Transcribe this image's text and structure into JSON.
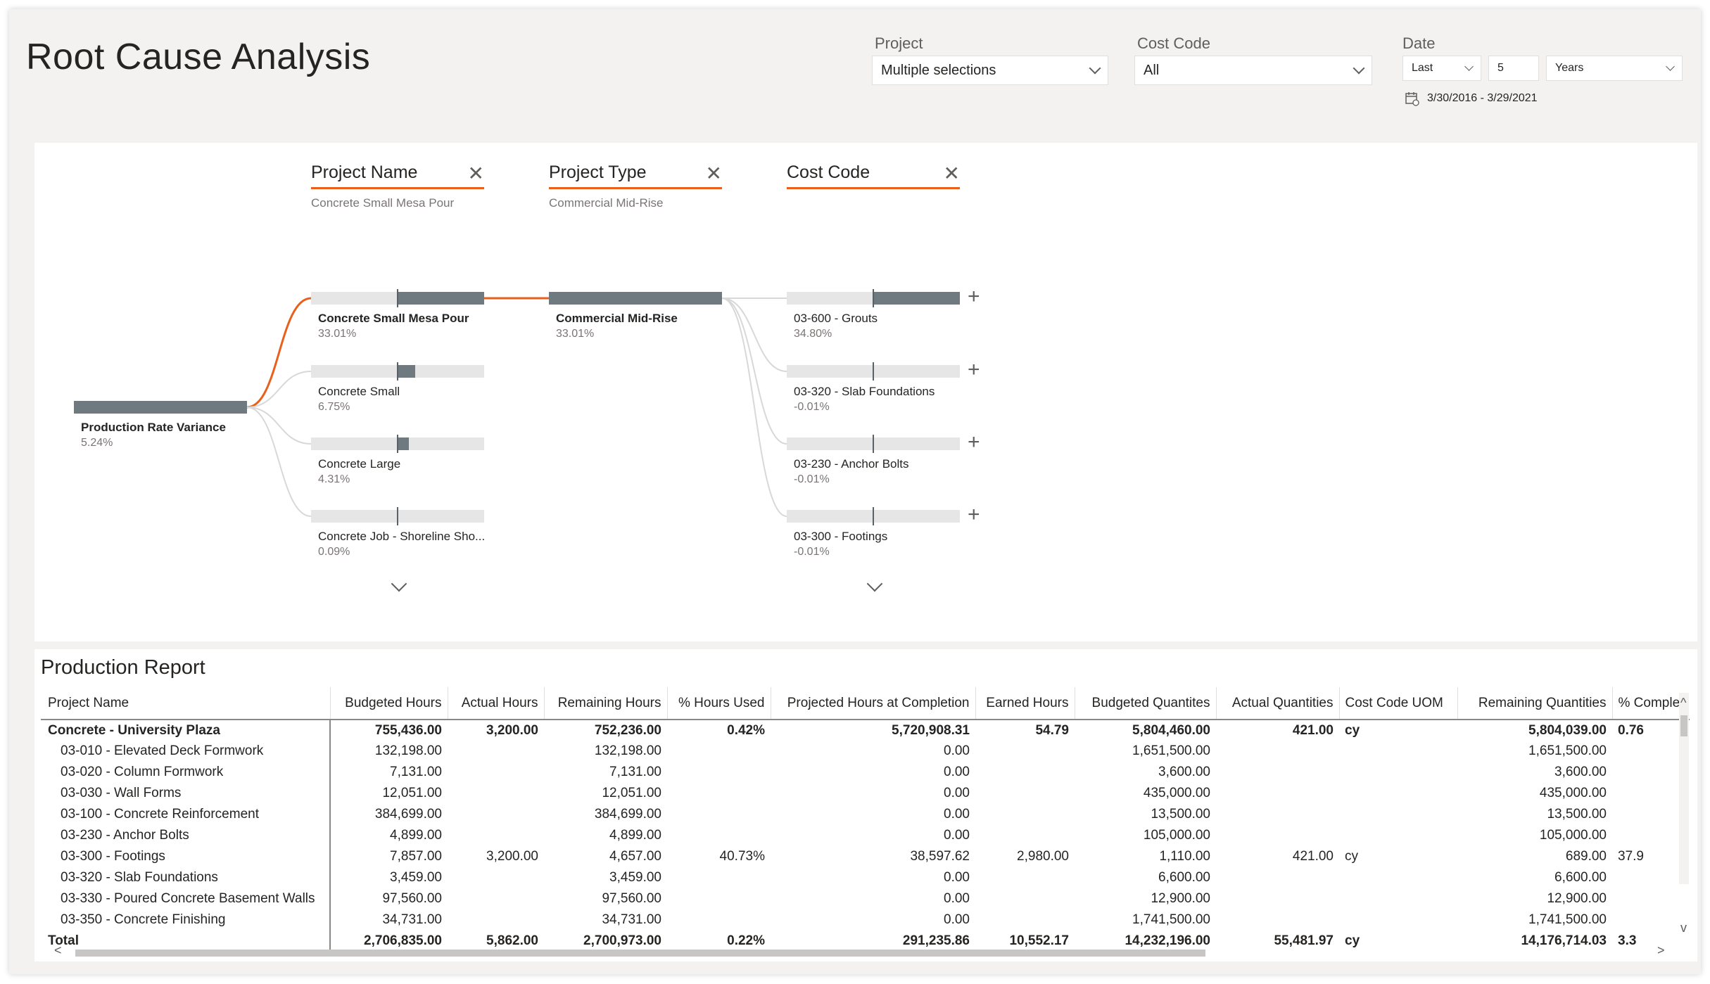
{
  "page": {
    "title": "Root Cause Analysis"
  },
  "filters": {
    "project": {
      "label": "Project",
      "value": "Multiple selections"
    },
    "cost_code": {
      "label": "Cost Code",
      "value": "All"
    },
    "date": {
      "label": "Date",
      "relative": "Last",
      "count": "5",
      "unit": "Years",
      "range": "3/30/2016 - 3/29/2021"
    }
  },
  "tree": {
    "root": {
      "label": "Production Rate Variance",
      "value": "5.24%"
    },
    "levels": [
      {
        "title": "Project Name",
        "selection": "Concrete Small Mesa Pour"
      },
      {
        "title": "Project Type",
        "selection": "Commercial Mid-Rise"
      },
      {
        "title": "Cost Code",
        "selection": ""
      }
    ],
    "project_nodes": [
      {
        "label": "Concrete Small Mesa Pour",
        "value": "33.01%",
        "share": 0.5
      },
      {
        "label": "Concrete Small",
        "value": "6.75%",
        "share": 0.1
      },
      {
        "label": "Concrete Large",
        "value": "4.31%",
        "share": 0.065
      },
      {
        "label": "Concrete Job - Shoreline Sho...",
        "value": "0.09%",
        "share": 0.0
      }
    ],
    "type_nodes": [
      {
        "label": "Commercial Mid-Rise",
        "value": "33.01%",
        "share": 1.0
      }
    ],
    "cost_nodes": [
      {
        "label": "03-600 - Grouts",
        "value": "34.80%",
        "share": 0.5
      },
      {
        "label": "03-320 - Slab Foundations",
        "value": "-0.01%",
        "share": 0.0
      },
      {
        "label": "03-230 - Anchor Bolts",
        "value": "-0.01%",
        "share": 0.0
      },
      {
        "label": "03-300 - Footings",
        "value": "-0.01%",
        "share": 0.0
      }
    ]
  },
  "report": {
    "title": "Production Report",
    "columns": [
      "Project Name",
      "Budgeted Hours",
      "Actual Hours",
      "Remaining Hours",
      "% Hours Used",
      "Projected Hours at Completion",
      "Earned Hours",
      "Budgeted Quantites",
      "Actual Quantities",
      "Cost Code UOM",
      "Remaining Quantities",
      "% Comple"
    ],
    "group_row": [
      "Concrete - University Plaza",
      "755,436.00",
      "3,200.00",
      "752,236.00",
      "0.42%",
      "5,720,908.31",
      "54.79",
      "5,804,460.00",
      "421.00",
      "cy",
      "5,804,039.00",
      "0.76"
    ],
    "rows": [
      [
        "03-010 - Elevated Deck Formwork",
        "132,198.00",
        "",
        "132,198.00",
        "",
        "0.00",
        "",
        "1,651,500.00",
        "",
        "",
        "1,651,500.00",
        ""
      ],
      [
        "03-020 - Column Formwork",
        "7,131.00",
        "",
        "7,131.00",
        "",
        "0.00",
        "",
        "3,600.00",
        "",
        "",
        "3,600.00",
        ""
      ],
      [
        "03-030 - Wall Forms",
        "12,051.00",
        "",
        "12,051.00",
        "",
        "0.00",
        "",
        "435,000.00",
        "",
        "",
        "435,000.00",
        ""
      ],
      [
        "03-100 - Concrete Reinforcement",
        "384,699.00",
        "",
        "384,699.00",
        "",
        "0.00",
        "",
        "13,500.00",
        "",
        "",
        "13,500.00",
        ""
      ],
      [
        "03-230 - Anchor Bolts",
        "4,899.00",
        "",
        "4,899.00",
        "",
        "0.00",
        "",
        "105,000.00",
        "",
        "",
        "105,000.00",
        ""
      ],
      [
        "03-300 - Footings",
        "7,857.00",
        "3,200.00",
        "4,657.00",
        "40.73%",
        "38,597.62",
        "2,980.00",
        "1,110.00",
        "421.00",
        "cy",
        "689.00",
        "37.9"
      ],
      [
        "03-320 - Slab Foundations",
        "3,459.00",
        "",
        "3,459.00",
        "",
        "0.00",
        "",
        "6,600.00",
        "",
        "",
        "6,600.00",
        ""
      ],
      [
        "03-330 - Poured Concrete Basement Walls",
        "97,560.00",
        "",
        "97,560.00",
        "",
        "0.00",
        "",
        "12,900.00",
        "",
        "",
        "12,900.00",
        ""
      ],
      [
        "03-350 - Concrete Finishing",
        "34,731.00",
        "",
        "34,731.00",
        "",
        "0.00",
        "",
        "1,741,500.00",
        "",
        "",
        "1,741,500.00",
        ""
      ]
    ],
    "total_row": [
      "Total",
      "2,706,835.00",
      "5,862.00",
      "2,700,973.00",
      "0.22%",
      "291,235.86",
      "10,552.17",
      "14,232,196.00",
      "55,481.97",
      "cy",
      "14,176,714.03",
      "3.3"
    ]
  },
  "colors": {
    "accent": "#e8601c",
    "bar": "#6e7a80",
    "track": "#e6e6e6"
  }
}
